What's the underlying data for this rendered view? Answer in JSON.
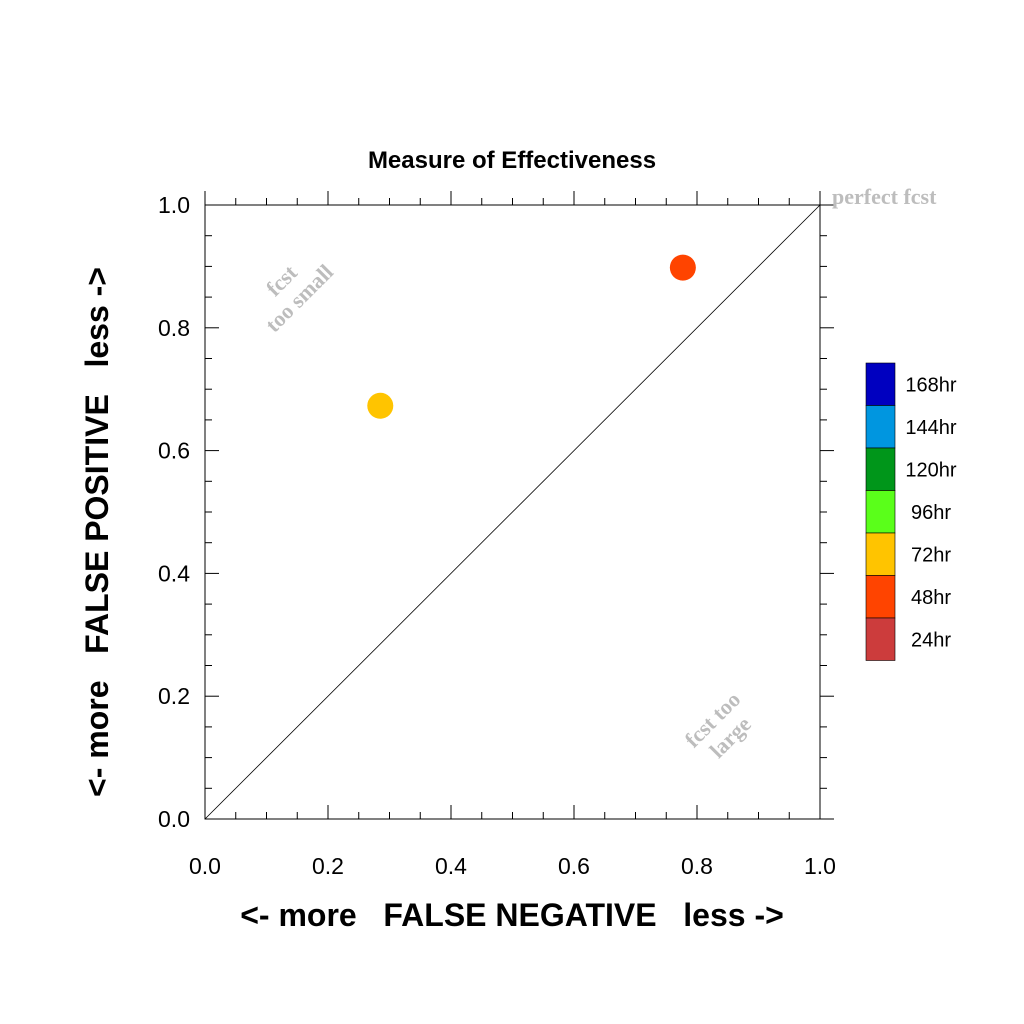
{
  "chart_data": {
    "type": "scatter",
    "title": "Measure of Effectiveness",
    "xlabel": "<- more   FALSE NEGATIVE   less ->",
    "ylabel": "<- more   FALSE POSITIVE   less ->",
    "xlim": [
      0.0,
      1.0
    ],
    "ylim": [
      0.0,
      1.0
    ],
    "xticks": [
      "0.0",
      "0.2",
      "0.4",
      "0.6",
      "0.8",
      "1.0"
    ],
    "yticks": [
      "0.0",
      "0.2",
      "0.4",
      "0.6",
      "0.8",
      "1.0"
    ],
    "grid": false,
    "reference_line": {
      "from": [
        0.0,
        0.0
      ],
      "to": [
        1.0,
        1.0
      ]
    },
    "annotations": {
      "perfect": "perfect fcst",
      "too_small": [
        "fcst",
        "too small"
      ],
      "too_large": [
        "fcst too",
        "large"
      ]
    },
    "points": [
      {
        "series": "72hr",
        "x": 0.285,
        "y": 0.673
      },
      {
        "series": "48hr",
        "x": 0.777,
        "y": 0.898
      }
    ],
    "legend": {
      "placement": "right",
      "entries": [
        {
          "name": "168hr",
          "color": "#0000c0"
        },
        {
          "name": "144hr",
          "color": "#0096e0"
        },
        {
          "name": "120hr",
          "color": "#00961a"
        },
        {
          "name": "96hr",
          "color": "#5aff1a"
        },
        {
          "name": "72hr",
          "color": "#ffc400"
        },
        {
          "name": "48hr",
          "color": "#ff4400"
        },
        {
          "name": "24hr",
          "color": "#cc3c3c"
        }
      ]
    }
  }
}
